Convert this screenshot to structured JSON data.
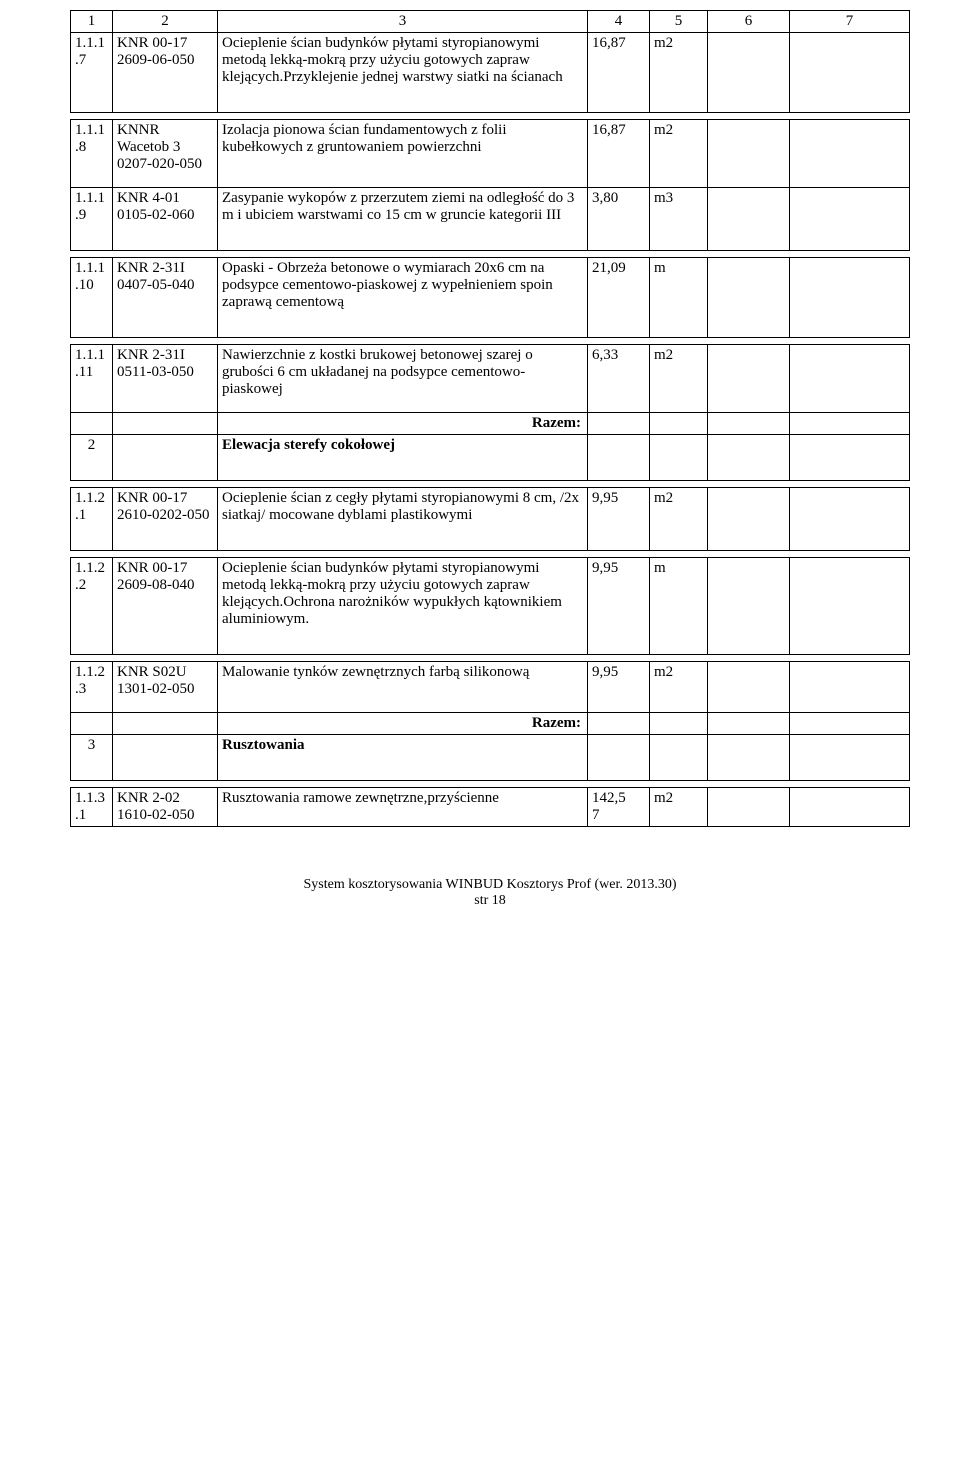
{
  "header": {
    "c1": "1",
    "c2": "2",
    "c3": "3",
    "c4": "4",
    "c5": "5",
    "c6": "6",
    "c7": "7"
  },
  "rows": {
    "r1": {
      "lp": "1.1.1.7",
      "code": "KNR 00-17\n2609-06-050",
      "desc": "Ocieplenie ścian budynków płytami styropianowymi metodą lekką-mokrą przy użyciu gotowych zapraw klejących.Przyklejenie jednej warstwy siatki na ścianach",
      "qty": "16,87",
      "unit": "m2"
    },
    "r2": {
      "lp": "1.1.1.8",
      "code": "KNNR Wacetob 3 0207-020-050",
      "desc": "Izolacja pionowa ścian fundamentowych z folii kubełkowych z gruntowaniem powierzchni",
      "qty": "16,87",
      "unit": "m2"
    },
    "r3": {
      "lp": "1.1.1.9",
      "code": "KNR 4-01 0105-02-060",
      "desc": "Zasypanie wykopów z przerzutem ziemi na odległość do 3 m i ubiciem warstwami co 15 cm w gruncie kategorii III",
      "qty": "3,80",
      "unit": "m3"
    },
    "r4": {
      "lp": "1.1.1.10",
      "code": "KNR 2-31I\n0407-05-040",
      "desc": "Opaski - Obrzeża betonowe o wymiarach 20x6 cm na podsypce cementowo-piaskowej z wypełnieniem spoin zaprawą cementową",
      "qty": "21,09",
      "unit": "m"
    },
    "r5": {
      "lp": "1.1.1.11",
      "code": "KNR 2-31I\n0511-03-050",
      "desc": "Nawierzchnie z kostki brukowej betonowej szarej o grubości 6 cm układanej na podsypce cementowo-piaskowej",
      "qty": "6,33",
      "unit": "m2"
    },
    "sec2": {
      "lp": "2",
      "title": "Elewacja sterefy cokołowej"
    },
    "r6": {
      "lp": "1.1.2.1",
      "code": "KNR 00-17\n2610-0202-050",
      "desc": "Ocieplenie ścian z cegły płytami styropianowymi 8 cm, /2x siatkaj/ mocowane dyblami plastikowymi",
      "qty": "9,95",
      "unit": "m2"
    },
    "r7": {
      "lp": "1.1.2.2",
      "code": "KNR 00-17\n2609-08-040",
      "desc": "Ocieplenie ścian budynków płytami styropianowymi metodą lekką-mokrą przy użyciu gotowych zapraw klejących.Ochrona narożników wypukłych kątownikiem aluminiowym.",
      "qty": "9,95",
      "unit": "m"
    },
    "r8": {
      "lp": "1.1.2.3",
      "code": "KNR S02U\n1301-02-050",
      "desc": "Malowanie tynków zewnętrznych  farbą silikonową",
      "qty": "9,95",
      "unit": "m2"
    },
    "sec3": {
      "lp": "3",
      "title": "Rusztowania"
    },
    "r9": {
      "lp": "1.1.3.1",
      "code": "KNR 2-02 1610-02-050",
      "desc": "Rusztowania ramowe zewnętrzne,przyścienne",
      "qty": "142,5\n7",
      "unit": "m2"
    }
  },
  "labels": {
    "razem": "Razem:"
  },
  "footer": {
    "line1": "System kosztorysowania WINBUD Kosztorys Prof (wer. 2013.30)",
    "line2": "str 18"
  }
}
